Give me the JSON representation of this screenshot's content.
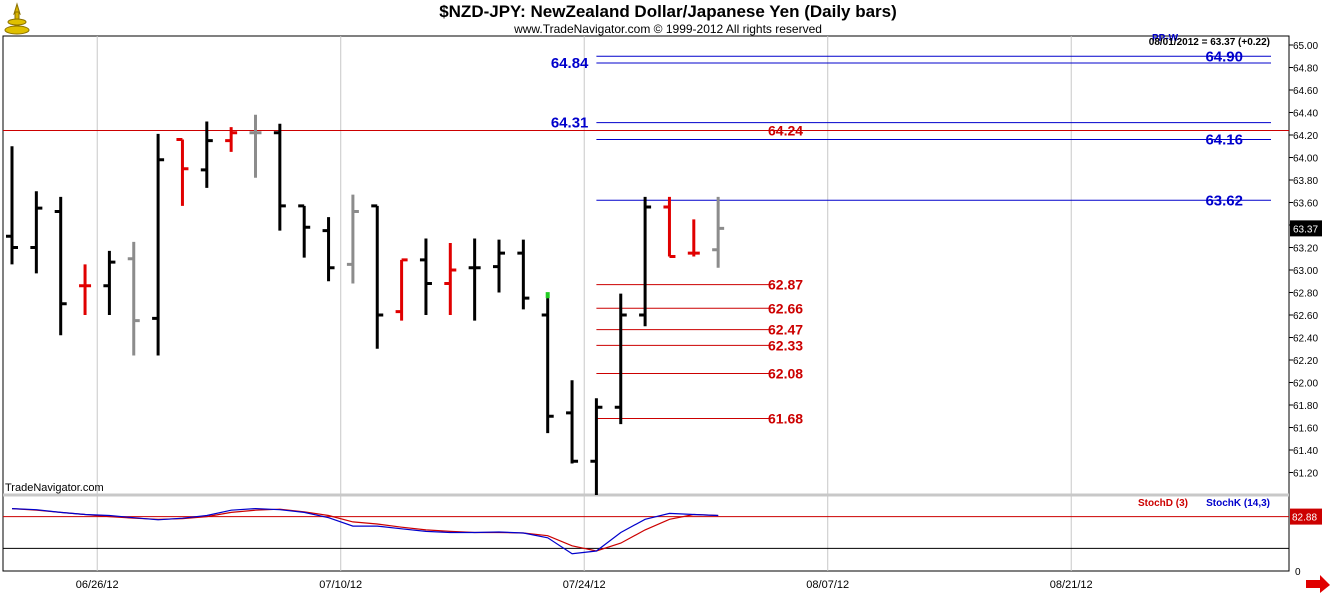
{
  "header": {
    "title": "$NZD-JPY:  NewZealand Dollar/Japanese Yen  (Daily bars)",
    "subtitle": "www.TradeNavigator.com © 1999-2012 All rights reserved",
    "last_info": "08/01/2012 = 63.37 (+0.22)",
    "pp_label": "PP-W",
    "watermark": "TradeNavigator.com"
  },
  "colors": {
    "up_bar": "#000000",
    "down_bar": "#e00000",
    "neutral_bar": "#8c8c8c",
    "resistance": "#0000cc",
    "support": "#cc0000",
    "stoch_k": "#0000cc",
    "stoch_d": "#cc0000",
    "grid": "#c8c8c8"
  },
  "chart_data": {
    "type": "ohlc",
    "y_axis": {
      "min": 61.0,
      "max": 65.08,
      "ticks": [
        "61.20",
        "61.40",
        "61.60",
        "61.80",
        "62.00",
        "62.20",
        "62.40",
        "62.60",
        "62.80",
        "63.00",
        "63.20",
        "63.40",
        "63.60",
        "63.80",
        "64.00",
        "64.20",
        "64.40",
        "64.60",
        "64.80",
        "65.00"
      ],
      "last_price": "63.37"
    },
    "x_axis": {
      "labels": [
        {
          "label": "06/26/12",
          "index": 3.5
        },
        {
          "label": "07/10/12",
          "index": 13.5
        },
        {
          "label": "07/24/12",
          "index": 23.5
        },
        {
          "label": "08/07/12",
          "index": 33.5
        },
        {
          "label": "08/21/12",
          "index": 43.5
        }
      ],
      "start_index": 0,
      "end_index": 48.2
    },
    "bars": [
      {
        "o": 63.3,
        "h": 64.1,
        "l": 63.05,
        "c": 63.2,
        "color": "up"
      },
      {
        "o": 63.2,
        "h": 63.7,
        "l": 62.97,
        "c": 63.55,
        "color": "up"
      },
      {
        "o": 63.52,
        "h": 63.65,
        "l": 62.42,
        "c": 62.7,
        "color": "up"
      },
      {
        "o": 62.86,
        "h": 63.05,
        "l": 62.6,
        "c": 62.86,
        "color": "down"
      },
      {
        "o": 62.86,
        "h": 63.17,
        "l": 62.6,
        "c": 63.07,
        "color": "up"
      },
      {
        "o": 63.1,
        "h": 63.25,
        "l": 62.24,
        "c": 62.55,
        "color": "neutral"
      },
      {
        "o": 62.57,
        "h": 64.21,
        "l": 62.24,
        "c": 63.98,
        "color": "up"
      },
      {
        "o": 64.16,
        "h": 64.16,
        "l": 63.57,
        "c": 63.9,
        "color": "down"
      },
      {
        "o": 63.89,
        "h": 64.32,
        "l": 63.73,
        "c": 64.15,
        "color": "up"
      },
      {
        "o": 64.15,
        "h": 64.27,
        "l": 64.05,
        "c": 64.22,
        "color": "down"
      },
      {
        "o": 64.22,
        "h": 64.38,
        "l": 63.82,
        "c": 64.22,
        "color": "neutral"
      },
      {
        "o": 64.22,
        "h": 64.3,
        "l": 63.35,
        "c": 63.57,
        "color": "up"
      },
      {
        "o": 63.57,
        "h": 63.57,
        "l": 63.11,
        "c": 63.38,
        "color": "up"
      },
      {
        "o": 63.35,
        "h": 63.47,
        "l": 62.9,
        "c": 63.02,
        "color": "up"
      },
      {
        "o": 63.05,
        "h": 63.67,
        "l": 62.88,
        "c": 63.52,
        "color": "neutral"
      },
      {
        "o": 63.57,
        "h": 63.57,
        "l": 62.3,
        "c": 62.6,
        "color": "up"
      },
      {
        "o": 62.63,
        "h": 63.09,
        "l": 62.55,
        "c": 63.09,
        "color": "down"
      },
      {
        "o": 63.09,
        "h": 63.28,
        "l": 62.6,
        "c": 62.88,
        "color": "up"
      },
      {
        "o": 62.88,
        "h": 63.24,
        "l": 62.6,
        "c": 63.0,
        "color": "down"
      },
      {
        "o": 63.02,
        "h": 63.28,
        "l": 62.55,
        "c": 63.02,
        "color": "up"
      },
      {
        "o": 63.03,
        "h": 63.27,
        "l": 62.8,
        "c": 63.15,
        "color": "up"
      },
      {
        "o": 63.15,
        "h": 63.27,
        "l": 62.65,
        "c": 62.75,
        "color": "up"
      },
      {
        "o": 62.6,
        "h": 62.75,
        "l": 61.55,
        "c": 61.7,
        "color": "up"
      },
      {
        "o": 61.73,
        "h": 62.02,
        "l": 61.28,
        "c": 61.3,
        "color": "up"
      },
      {
        "o": 61.3,
        "h": 61.86,
        "l": 61.0,
        "c": 61.78,
        "color": "up"
      },
      {
        "o": 61.78,
        "h": 62.79,
        "l": 61.63,
        "c": 62.6,
        "color": "up"
      },
      {
        "o": 62.6,
        "h": 63.65,
        "l": 62.5,
        "c": 63.56,
        "color": "up"
      },
      {
        "o": 63.56,
        "h": 63.65,
        "l": 63.12,
        "c": 63.12,
        "color": "down"
      },
      {
        "o": 63.15,
        "h": 63.45,
        "l": 63.12,
        "c": 63.15,
        "color": "down"
      },
      {
        "o": 63.18,
        "h": 63.65,
        "l": 63.02,
        "c": 63.37,
        "color": "neutral"
      }
    ],
    "support_levels": [
      {
        "label": "64.24",
        "value": 64.24
      },
      {
        "label": "62.87",
        "value": 62.87
      },
      {
        "label": "62.66",
        "value": 62.66
      },
      {
        "label": "62.47",
        "value": 62.47
      },
      {
        "label": "62.33",
        "value": 62.33
      },
      {
        "label": "62.08",
        "value": 62.08
      },
      {
        "label": "61.68",
        "value": 61.68
      }
    ],
    "resistance_levels": [
      {
        "label": "64.84",
        "value": 64.84,
        "label_side": "left"
      },
      {
        "label": "64.31",
        "value": 64.31,
        "label_side": "left"
      },
      {
        "label": "64.90",
        "value": 64.9,
        "label_side": "right"
      },
      {
        "label": "64.16",
        "value": 64.16,
        "label_side": "right"
      },
      {
        "label": "63.62",
        "value": 63.62,
        "label_side": "right"
      }
    ],
    "horizontal_line": {
      "value": 64.24
    },
    "stochastic": {
      "legend_d": "StochD (3)",
      "legend_k": "StochK (14,3)",
      "last_value": "82.88",
      "zero_label": "0",
      "levels": [
        80,
        20
      ],
      "k": [
        95,
        93,
        88,
        84,
        82,
        78,
        74,
        77,
        82,
        92,
        95,
        93,
        88,
        78,
        62,
        62,
        57,
        52,
        50,
        50,
        51,
        49,
        40,
        10,
        15,
        50,
        75,
        86,
        84,
        82
      ],
      "d": [
        95,
        92,
        88,
        84,
        80,
        77,
        75,
        76,
        80,
        88,
        92,
        94,
        89,
        82,
        70,
        66,
        60,
        55,
        52,
        50,
        50,
        49,
        44,
        25,
        15,
        30,
        55,
        75,
        84,
        82
      ]
    }
  }
}
